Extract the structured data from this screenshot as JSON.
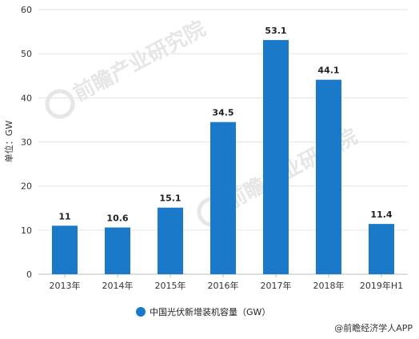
{
  "chart_data": {
    "type": "bar",
    "categories": [
      "2013年",
      "2014年",
      "2015年",
      "2016年",
      "2017年",
      "2018年",
      "2019年H1"
    ],
    "series": [
      {
        "name": "中国光伏新增装机容量（GW）",
        "values": [
          11,
          10.6,
          15.1,
          34.5,
          53.1,
          44.1,
          11.4
        ]
      }
    ],
    "data_labels": [
      "11",
      "10.6",
      "15.1",
      "34.5",
      "53.1",
      "44.1",
      "11.4"
    ],
    "ylabel": "单位：GW",
    "ylim": [
      0,
      60
    ],
    "yticks": [
      0,
      10,
      20,
      30,
      40,
      50,
      60
    ],
    "grid": true,
    "legend_position": "bottom-center",
    "bar_color": "#1a7ac9"
  },
  "source": "@前瞻经济学人APP",
  "watermark": "前瞻产业研究院"
}
